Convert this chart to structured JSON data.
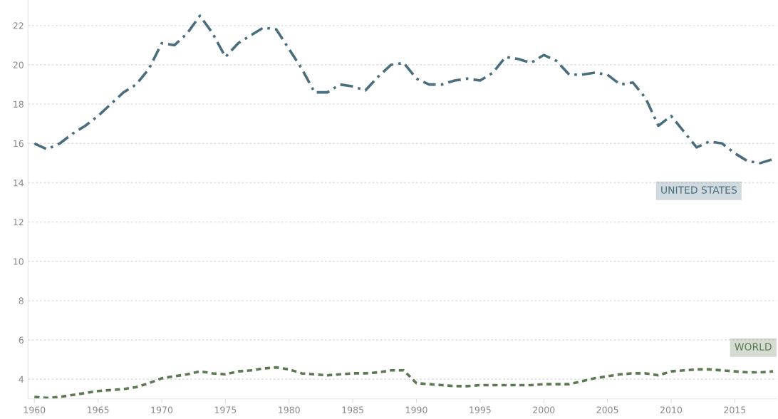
{
  "chart_data": {
    "type": "line",
    "x": [
      1960,
      1961,
      1962,
      1963,
      1964,
      1965,
      1966,
      1967,
      1968,
      1969,
      1970,
      1971,
      1972,
      1973,
      1974,
      1975,
      1976,
      1977,
      1978,
      1979,
      1980,
      1981,
      1982,
      1983,
      1984,
      1985,
      1986,
      1987,
      1988,
      1989,
      1990,
      1991,
      1992,
      1993,
      1994,
      1995,
      1996,
      1997,
      1998,
      1999,
      2000,
      2001,
      2002,
      2003,
      2004,
      2005,
      2006,
      2007,
      2008,
      2009,
      2010,
      2011,
      2012,
      2013,
      2014,
      2015,
      2016,
      2017,
      2018
    ],
    "series": [
      {
        "name": "UNITED STATES",
        "color": "#4a6e7e",
        "line_style": "dashed",
        "values": [
          16.0,
          15.7,
          16.0,
          16.5,
          16.9,
          17.4,
          18.0,
          18.6,
          19.0,
          19.8,
          21.1,
          21.0,
          21.6,
          22.5,
          21.6,
          20.4,
          21.1,
          21.5,
          21.9,
          21.8,
          20.8,
          19.8,
          18.6,
          18.6,
          19.0,
          18.9,
          18.7,
          19.4,
          20.0,
          20.1,
          19.3,
          19.0,
          19.0,
          19.2,
          19.3,
          19.2,
          19.6,
          20.4,
          20.3,
          20.1,
          20.5,
          20.2,
          19.5,
          19.5,
          19.6,
          19.5,
          19.0,
          19.1,
          18.3,
          16.9,
          17.4,
          16.6,
          15.8,
          16.1,
          16.0,
          15.5,
          15.1,
          15.0,
          15.2
        ]
      },
      {
        "name": "WORLD",
        "color": "#5b7a52",
        "line_style": "dotted",
        "values": [
          3.1,
          3.05,
          3.1,
          3.2,
          3.3,
          3.4,
          3.45,
          3.5,
          3.6,
          3.8,
          4.05,
          4.15,
          4.25,
          4.4,
          4.3,
          4.25,
          4.4,
          4.45,
          4.55,
          4.6,
          4.5,
          4.3,
          4.25,
          4.2,
          4.25,
          4.3,
          4.3,
          4.35,
          4.45,
          4.45,
          3.8,
          3.75,
          3.7,
          3.65,
          3.65,
          3.7,
          3.7,
          3.7,
          3.7,
          3.7,
          3.75,
          3.75,
          3.75,
          3.9,
          4.05,
          4.15,
          4.25,
          4.3,
          4.3,
          4.2,
          4.4,
          4.45,
          4.5,
          4.5,
          4.45,
          4.4,
          4.35,
          4.35,
          4.4
        ]
      }
    ],
    "xlim": [
      1959.5,
      2018.3
    ],
    "ylim": [
      3.0,
      23.3
    ],
    "xticks": [
      1960,
      1965,
      1970,
      1975,
      1980,
      1985,
      1990,
      1995,
      2000,
      2005,
      2010,
      2015
    ],
    "yticks": [
      4,
      6,
      8,
      10,
      12,
      14,
      16,
      18,
      20,
      22
    ],
    "grid": "y",
    "legend": false
  }
}
